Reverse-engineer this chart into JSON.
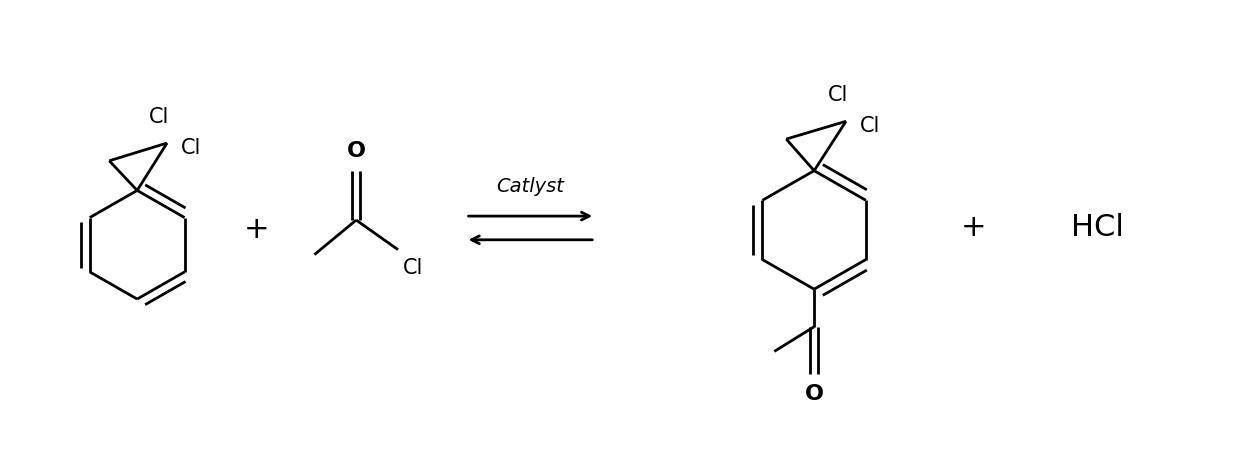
{
  "bg_color": "#ffffff",
  "line_color": "#000000",
  "font_family": "DejaVu Sans",
  "font_size_label": 15,
  "font_size_plus": 22,
  "font_size_hcl": 22,
  "font_size_catalyst": 14,
  "catalyst_text": "Catlyst",
  "plus_symbol": "+",
  "hcl_text": "HCl"
}
